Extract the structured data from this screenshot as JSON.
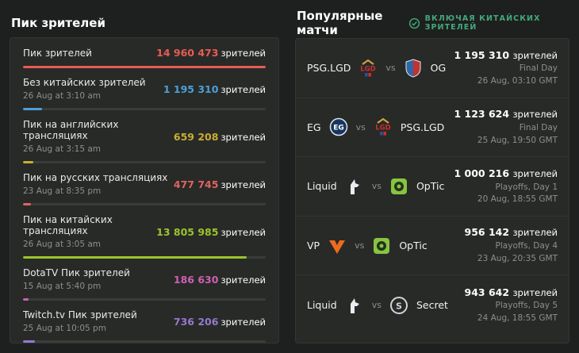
{
  "left_panel": {
    "title": "Пик зрителей",
    "unit": "зрителей",
    "stats": [
      {
        "label": "Пик зрителей",
        "date": "",
        "value": "14 960 473",
        "color": "#ea5b52",
        "bar_pct": 100
      },
      {
        "label": "Без китайских зрителей",
        "date": "26 Aug at 3:10 am",
        "value": "1 195 310",
        "color": "#4d9fd6",
        "bar_pct": 8
      },
      {
        "label": "Пик на английских трансляциях",
        "date": "26 Aug at 3:15 am",
        "value": "659 208",
        "color": "#c9ad33",
        "bar_pct": 4.4
      },
      {
        "label": "Пик на русских трансляциях",
        "date": "23 Aug at 8:35 pm",
        "value": "477 745",
        "color": "#e0635e",
        "bar_pct": 3.2
      },
      {
        "label": "Пик на китайских трансляциях",
        "date": "26 Aug at 3:05 am",
        "value": "13 805 985",
        "color": "#9cc42c",
        "bar_pct": 92
      },
      {
        "label": "DotaTV Пик зрителей",
        "date": "15 Aug at 5:40 pm",
        "value": "186 630",
        "color": "#cf5fb4",
        "bar_pct": 2.2
      },
      {
        "label": "Twitch.tv Пик зрителей",
        "date": "25 Aug at 10:05 pm",
        "value": "736 206",
        "color": "#9678cd",
        "bar_pct": 5
      }
    ]
  },
  "right_panel": {
    "title": "Популярные матчи",
    "toggle_label": "Включая китайских зрителей",
    "unit": "зрителей",
    "matches": [
      {
        "team1": "PSG.LGD",
        "team2": "OG",
        "viewers": "1 195 310",
        "stage": "Final Day",
        "date": "26 Aug, 03:10 GMT"
      },
      {
        "team1": "EG",
        "team2": "PSG.LGD",
        "viewers": "1 123 624",
        "stage": "Final Day",
        "date": "25 Aug, 19:50 GMT"
      },
      {
        "team1": "Liquid",
        "team2": "OpTic",
        "viewers": "1 000 216",
        "stage": "Playoffs, Day 1",
        "date": "20 Aug, 18:55 GMT"
      },
      {
        "team1": "VP",
        "team2": "OpTic",
        "viewers": "956 142",
        "stage": "Playoffs, Day 4",
        "date": "23 Aug, 20:35 GMT"
      },
      {
        "team1": "Liquid",
        "team2": "Secret",
        "viewers": "943 642",
        "stage": "Playoffs, Day 5",
        "date": "24 Aug, 18:55 GMT"
      }
    ]
  },
  "accent_colors": {
    "toggle_green": "#43a87d"
  }
}
